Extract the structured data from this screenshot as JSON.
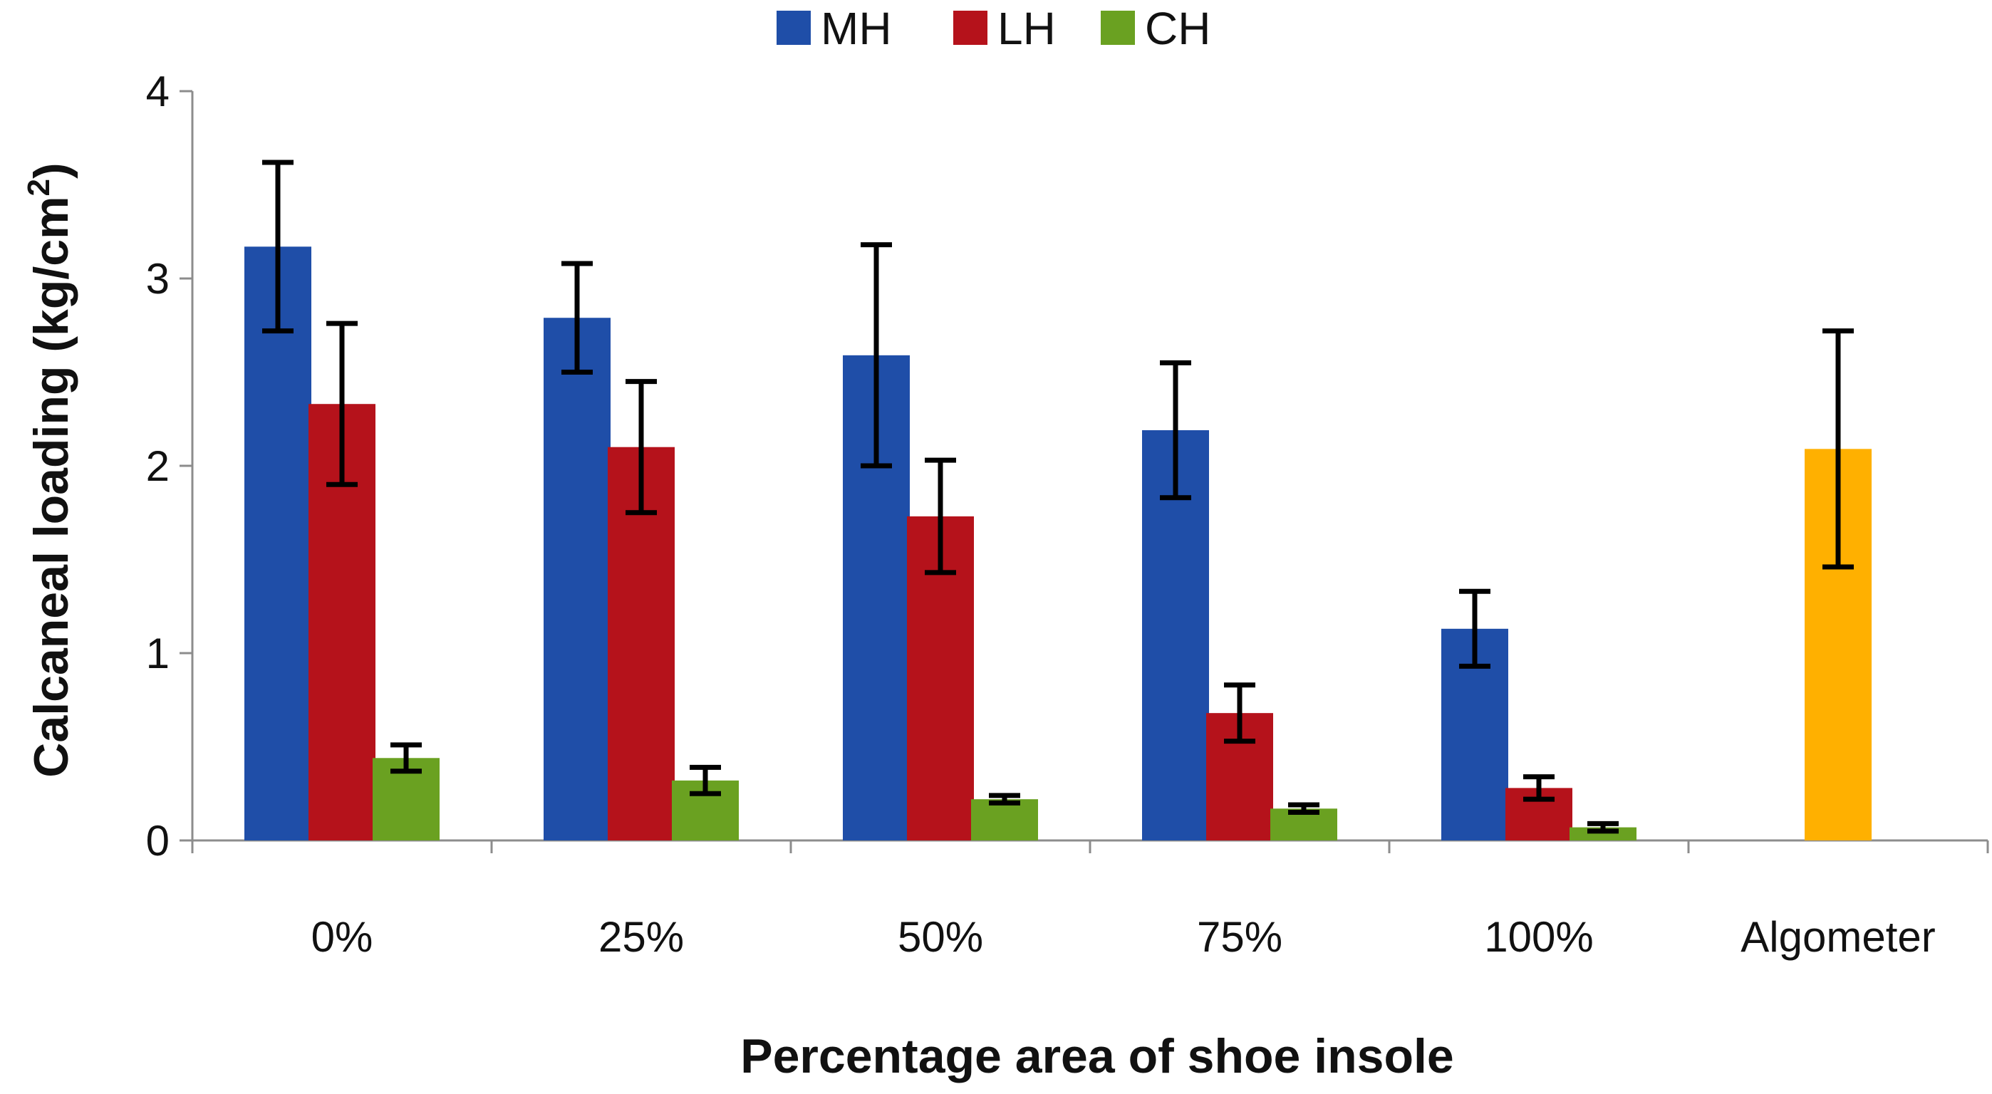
{
  "chart_data": {
    "type": "bar",
    "title": "",
    "xlabel": "Percentage area of shoe insole",
    "ylabel_main": "Calcaneal loading (kg/cm",
    "ylabel_sup": "2",
    "ylabel_close": ")",
    "ylim": [
      0,
      4
    ],
    "yticks": [
      "0",
      "1",
      "2",
      "3",
      "4"
    ],
    "categories": [
      "0%",
      "25%",
      "50%",
      "75%",
      "100%",
      "Algometer"
    ],
    "legend_position": "top-center",
    "grid": false,
    "series": [
      {
        "name": "MH",
        "color": "#1f4ea8",
        "values": [
          3.17,
          2.79,
          2.59,
          2.19,
          1.13,
          null
        ],
        "error": [
          0.45,
          0.29,
          0.59,
          0.36,
          0.2,
          null
        ]
      },
      {
        "name": "LH",
        "color": "#b5121b",
        "values": [
          2.33,
          2.1,
          1.73,
          0.68,
          0.28,
          null
        ],
        "error": [
          0.43,
          0.35,
          0.3,
          0.15,
          0.06,
          null
        ]
      },
      {
        "name": "CH",
        "color": "#6aa121",
        "values": [
          0.44,
          0.32,
          0.22,
          0.17,
          0.07,
          null
        ],
        "error": [
          0.07,
          0.07,
          0.02,
          0.02,
          0.02,
          null
        ]
      }
    ],
    "extra_bars": [
      {
        "category": "Algometer",
        "value": 2.09,
        "error": 0.63,
        "color": "#ffb000"
      }
    ]
  }
}
